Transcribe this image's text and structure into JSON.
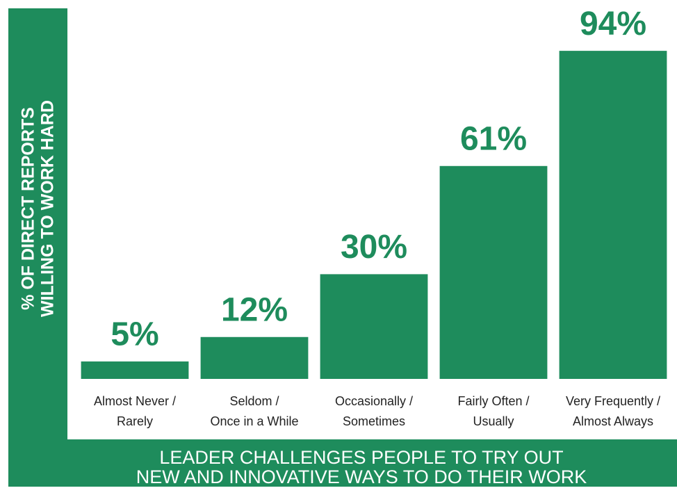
{
  "chart_data": {
    "type": "bar",
    "ylabel": [
      "% OF DIRECT REPORTS",
      "WILLING TO WORK HARD"
    ],
    "xlabel": [
      "LEADER CHALLENGES PEOPLE TO TRY OUT",
      "NEW AND INNOVATIVE WAYS TO DO THEIR WORK"
    ],
    "categories": [
      "Almost Never / Rarely",
      "Seldom / Once in a While",
      "Occasionally / Sometimes",
      "Fairly Often / Usually",
      "Very Frequently / Almost Always"
    ],
    "values": [
      5,
      12,
      30,
      61,
      94
    ],
    "value_labels": [
      "5%",
      "12%",
      "30%",
      "61%",
      "94%"
    ],
    "color": "#1e8c5c",
    "ylim": [
      0,
      100
    ]
  }
}
